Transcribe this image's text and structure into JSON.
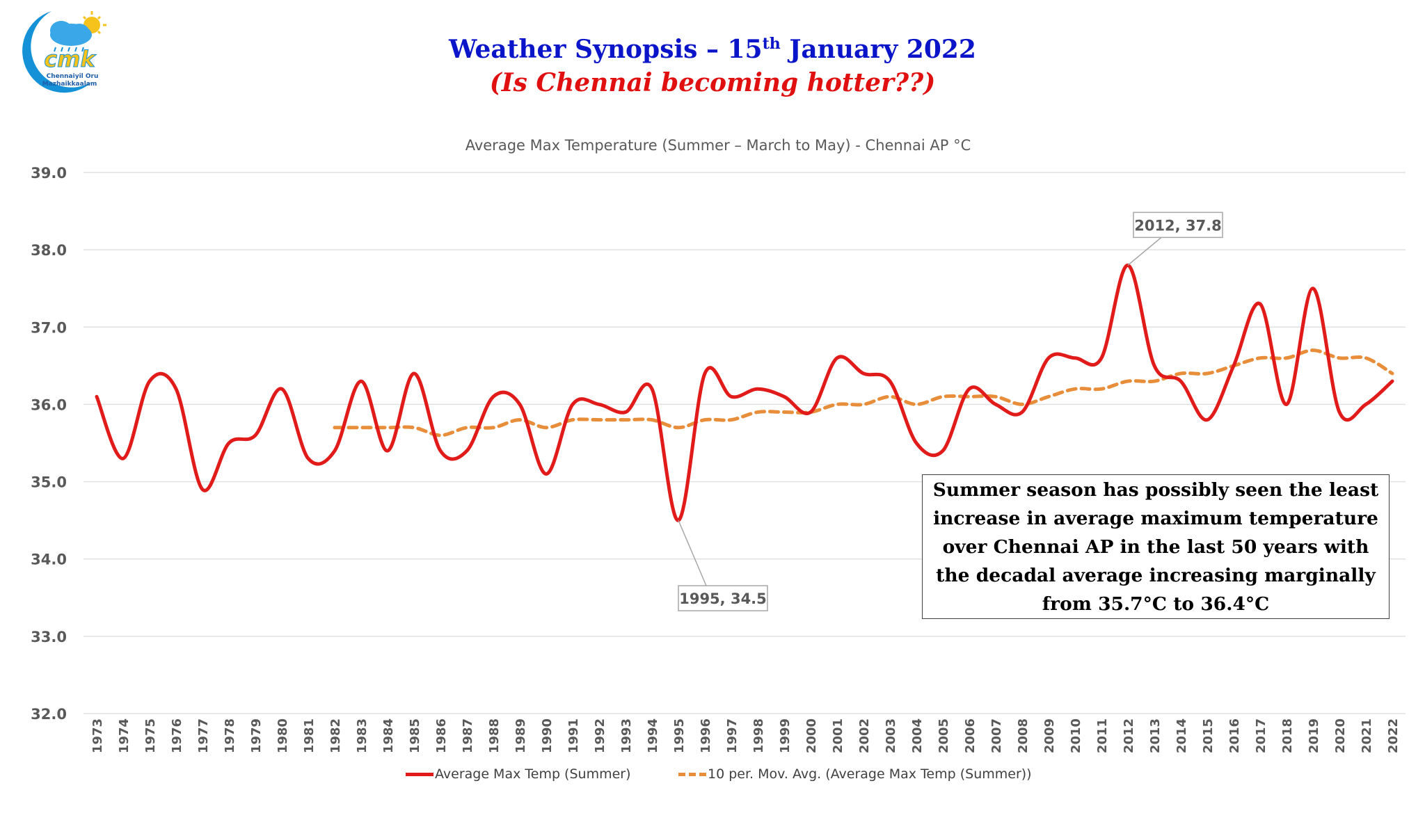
{
  "header": {
    "title_prefix": "Weather Synopsis – 15",
    "title_sup": "th",
    "title_suffix": " January 2022",
    "subtitle": "(Is Chennai becoming hotter??)"
  },
  "logo": {
    "initials": "cmk",
    "text_line1": "Chennaiyil Oru",
    "text_line2": "Mazhaikkaalam"
  },
  "colors": {
    "title": "#0a14c8",
    "subtitle": "#e01010",
    "series_main": "#e11a1a",
    "series_avg": "#e88d3a",
    "grid": "#e0e0e0",
    "axis_text": "#595959"
  },
  "callout": {
    "text": "Summer season has possibly seen the least increase in average maximum temperature over Chennai AP in the last 50 years with the decadal average increasing marginally from 35.7°C to 36.4°C"
  },
  "chart_data": {
    "type": "line",
    "title": "Average Max Temperature (Summer – March to May)  - Chennai AP °C",
    "xlabel": "",
    "ylabel": "",
    "ylim": [
      32.0,
      39.0
    ],
    "yticks": [
      "39.0",
      "38.0",
      "37.0",
      "36.0",
      "35.0",
      "34.0",
      "33.0",
      "32.0"
    ],
    "grid": true,
    "legend_position": "bottom",
    "categories": [
      "1973",
      "1974",
      "1975",
      "1976",
      "1977",
      "1978",
      "1979",
      "1980",
      "1981",
      "1982",
      "1983",
      "1984",
      "1985",
      "1986",
      "1987",
      "1988",
      "1989",
      "1990",
      "1991",
      "1992",
      "1993",
      "1994",
      "1995",
      "1996",
      "1997",
      "1998",
      "1999",
      "2000",
      "2001",
      "2002",
      "2003",
      "2004",
      "2005",
      "2006",
      "2007",
      "2008",
      "2009",
      "2010",
      "2011",
      "2012",
      "2013",
      "2014",
      "2015",
      "2016",
      "2017",
      "2018",
      "2019",
      "2020",
      "2021",
      "2022"
    ],
    "series": [
      {
        "name": "Average Max Temp (Summer)",
        "style": "solid",
        "values": [
          36.1,
          35.3,
          36.3,
          36.2,
          34.9,
          35.5,
          35.6,
          36.2,
          35.3,
          35.4,
          36.3,
          35.4,
          36.4,
          35.4,
          35.4,
          36.1,
          36.0,
          35.1,
          36.0,
          36.0,
          35.9,
          36.2,
          34.5,
          36.4,
          36.1,
          36.2,
          36.1,
          35.9,
          36.6,
          36.4,
          36.3,
          35.5,
          35.4,
          36.2,
          36.0,
          35.9,
          36.6,
          36.6,
          36.6,
          37.8,
          36.5,
          36.3,
          35.8,
          36.5,
          37.3,
          36.0,
          37.5,
          35.9,
          36.0,
          36.3
        ]
      },
      {
        "name": "10 per. Mov. Avg. (Average Max Temp (Summer))",
        "style": "dashed",
        "values": [
          null,
          null,
          null,
          null,
          null,
          null,
          null,
          null,
          null,
          35.7,
          35.7,
          35.7,
          35.7,
          35.6,
          35.7,
          35.7,
          35.8,
          35.7,
          35.8,
          35.8,
          35.8,
          35.8,
          35.7,
          35.8,
          35.8,
          35.9,
          35.9,
          35.9,
          36.0,
          36.0,
          36.1,
          36.0,
          36.1,
          36.1,
          36.1,
          36.0,
          36.1,
          36.2,
          36.2,
          36.3,
          36.3,
          36.4,
          36.4,
          36.5,
          36.6,
          36.6,
          36.7,
          36.6,
          36.6,
          36.4
        ]
      }
    ],
    "annotations": [
      {
        "label": "2012, 37.8",
        "x": "2012",
        "y": 37.8
      },
      {
        "label": "1995, 34.5",
        "x": "1995",
        "y": 34.5
      }
    ]
  }
}
